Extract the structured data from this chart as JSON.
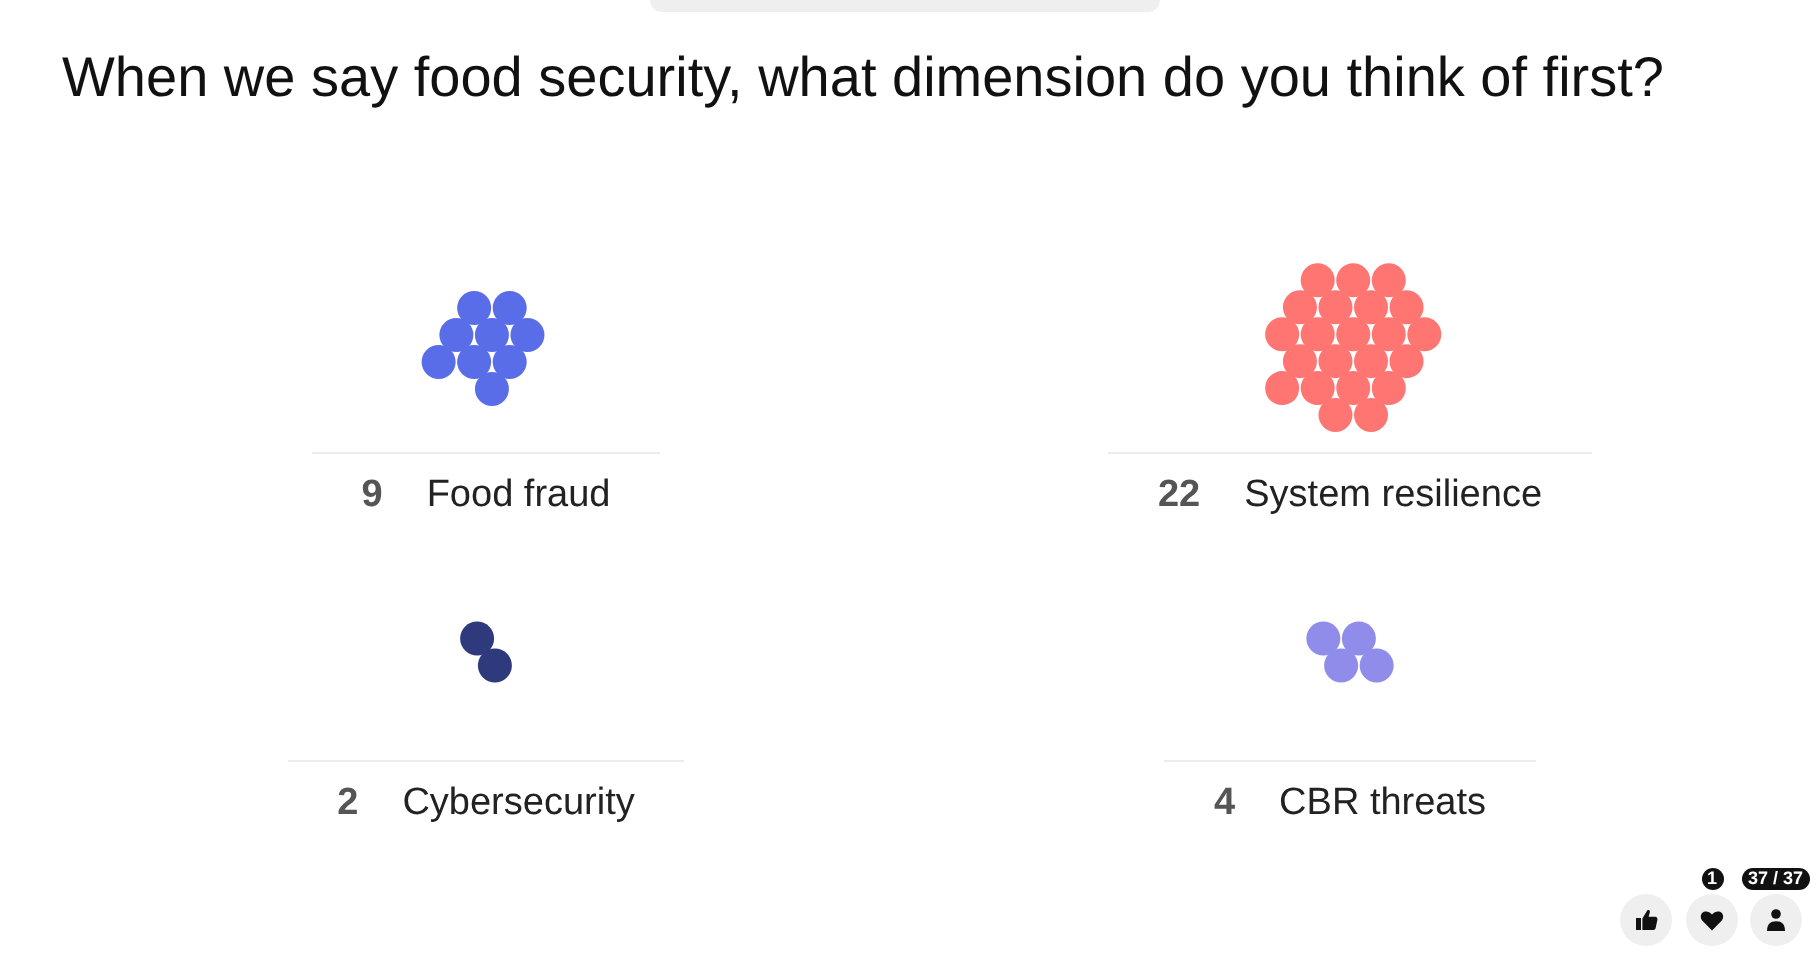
{
  "chart_data": {
    "type": "other",
    "title": "When we say food security, what dimension do you think of first?",
    "categories": [
      "Food fraud",
      "System resilience",
      "Cybersecurity",
      "CBR threats"
    ],
    "values": [
      9,
      22,
      2,
      4
    ],
    "colors": [
      "#5a6de9",
      "#ff7571",
      "#2e3a7c",
      "#8f8de9"
    ],
    "data_labels": true,
    "annotations": [
      "1",
      "37 / 37"
    ]
  }
}
